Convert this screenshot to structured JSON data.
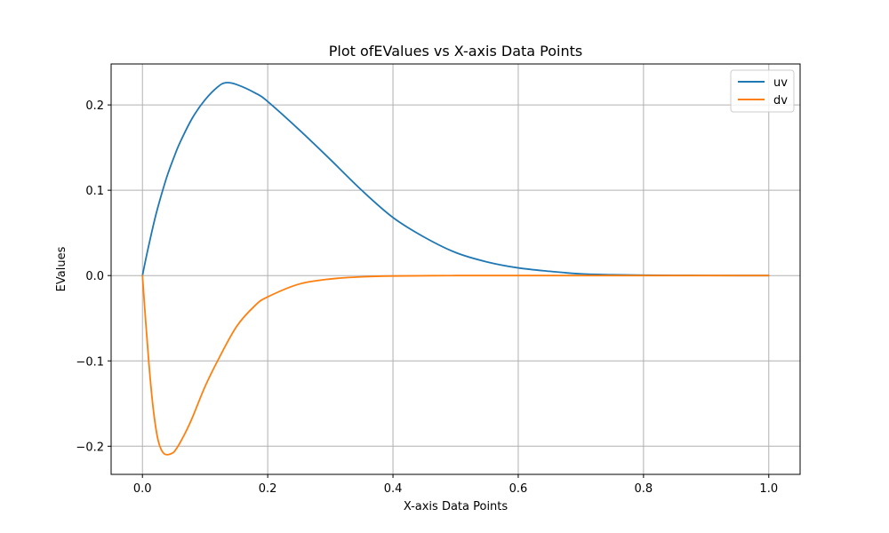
{
  "chart_data": {
    "type": "line",
    "title": "Plot ofEValues vs X-axis Data Points",
    "xlabel": "X-axis Data Points",
    "ylabel": "EValues",
    "xlim": [
      -0.05,
      1.05
    ],
    "ylim": [
      -0.233,
      0.248
    ],
    "grid": true,
    "legend_position": "top-right",
    "x_ticks": [
      0.0,
      0.2,
      0.4,
      0.6,
      0.8,
      1.0
    ],
    "x_tick_labels": [
      "0.0",
      "0.2",
      "0.4",
      "0.6",
      "0.8",
      "1.0"
    ],
    "y_ticks": [
      -0.2,
      -0.1,
      0.0,
      0.1,
      0.2
    ],
    "y_tick_labels": [
      "−0.2",
      "−0.1",
      "0.0",
      "0.1",
      "0.2"
    ],
    "series": [
      {
        "name": "uv",
        "color": "#1f77b4",
        "x": [
          0.0,
          0.005,
          0.01,
          0.02,
          0.03,
          0.04,
          0.05,
          0.06,
          0.08,
          0.1,
          0.12,
          0.133,
          0.15,
          0.18,
          0.2,
          0.25,
          0.3,
          0.35,
          0.4,
          0.45,
          0.5,
          0.55,
          0.6,
          0.65,
          0.7,
          0.75,
          0.8,
          0.85,
          0.9,
          0.95,
          1.0
        ],
        "values": [
          0.0,
          0.018,
          0.035,
          0.067,
          0.094,
          0.118,
          0.138,
          0.156,
          0.185,
          0.206,
          0.221,
          0.226,
          0.224,
          0.214,
          0.204,
          0.171,
          0.136,
          0.1,
          0.068,
          0.045,
          0.027,
          0.016,
          0.009,
          0.005,
          0.002,
          0.001,
          0.0005,
          0.0002,
          0.0001,
          0.0,
          0.0
        ]
      },
      {
        "name": "dv",
        "color": "#ff7f0e",
        "x": [
          0.0,
          0.005,
          0.01,
          0.015,
          0.02,
          0.025,
          0.03,
          0.035,
          0.04,
          0.045,
          0.05,
          0.055,
          0.06,
          0.07,
          0.08,
          0.1,
          0.12,
          0.15,
          0.18,
          0.2,
          0.25,
          0.3,
          0.35,
          0.4,
          0.5,
          0.6,
          0.8,
          1.0
        ],
        "values": [
          0.0,
          -0.052,
          -0.1,
          -0.141,
          -0.172,
          -0.193,
          -0.204,
          -0.209,
          -0.21,
          -0.209,
          -0.207,
          -0.202,
          -0.196,
          -0.182,
          -0.166,
          -0.13,
          -0.1,
          -0.06,
          -0.035,
          -0.025,
          -0.01,
          -0.004,
          -0.0015,
          -0.0005,
          0.0,
          0.0,
          0.0,
          0.0
        ]
      }
    ]
  }
}
